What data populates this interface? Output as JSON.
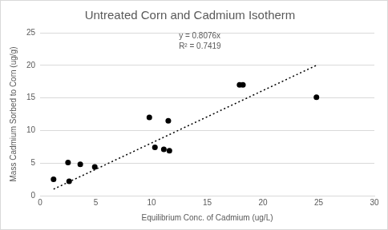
{
  "chart_data": {
    "type": "scatter",
    "title": "Untreated Corn and Cadmium Isotherm",
    "x_label": "Equilibrium Conc. of Cadmium (ug/L)",
    "y_label": "Mass Cadmium Sorbed to Corn (ug/g)",
    "xlim": [
      0,
      30
    ],
    "xticks": [
      0,
      5,
      10,
      15,
      20,
      25,
      30
    ],
    "ylim": [
      0,
      25
    ],
    "yticks": [
      0,
      5,
      10,
      15,
      20,
      25
    ],
    "grid": "y",
    "series": [
      {
        "type": "scatter",
        "color": "#000000",
        "marker": "circle",
        "x": [
          1.2,
          2.5,
          2.6,
          3.6,
          4.9,
          9.8,
          10.3,
          11.1,
          11.6,
          11.5,
          17.9,
          18.2,
          24.8
        ],
        "values": [
          2.5,
          5.1,
          2.2,
          4.8,
          4.4,
          12.0,
          7.4,
          7.1,
          6.9,
          11.5,
          17.0,
          17.0,
          15.1
        ]
      },
      {
        "type": "line",
        "color": "#000000",
        "line_style": "dotted",
        "x": [
          1.2,
          24.8
        ],
        "values": [
          1.0,
          20.0
        ]
      }
    ],
    "annotations": [
      "y = 0.8076x",
      "R² = 0.7419"
    ]
  }
}
